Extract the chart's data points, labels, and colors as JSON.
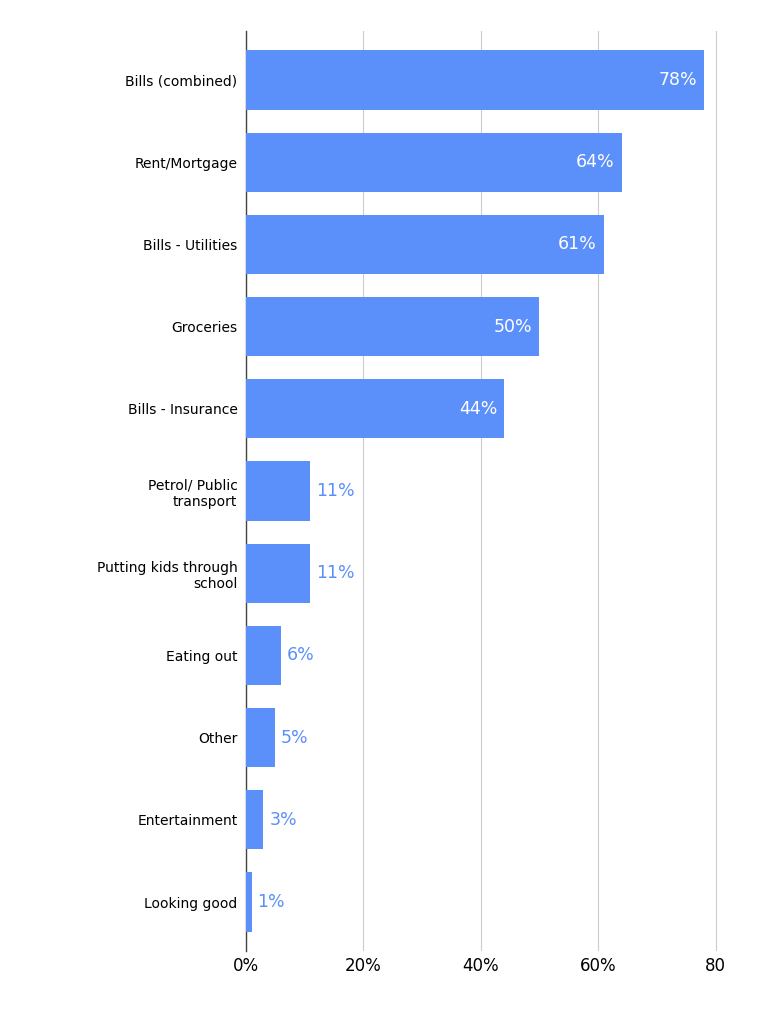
{
  "categories": [
    "Bills (combined)",
    "Rent/Mortgage",
    "Bills - Utilities",
    "Groceries",
    "Bills - Insurance",
    "Petrol/ Public\ntransport",
    "Putting kids through\nschool",
    "Eating out",
    "Other",
    "Entertainment",
    "Looking good"
  ],
  "values": [
    78,
    64,
    61,
    50,
    44,
    11,
    11,
    6,
    5,
    3,
    1
  ],
  "bar_color": "#5b8ff9",
  "label_color_inside": "#ffffff",
  "label_color_outside": "#5b8ff9",
  "threshold_inside": 12,
  "background_color": "#ffffff",
  "grid_color": "#cccccc",
  "xlabel_ticks": [
    0,
    20,
    40,
    60,
    80
  ],
  "xlabel_labels": [
    "0%",
    "20%",
    "40%",
    "60%",
    "80"
  ],
  "xlim": [
    0,
    85
  ],
  "bar_height": 0.72,
  "label_fontsize": 12.5,
  "tick_fontsize": 12,
  "category_fontsize": 13
}
